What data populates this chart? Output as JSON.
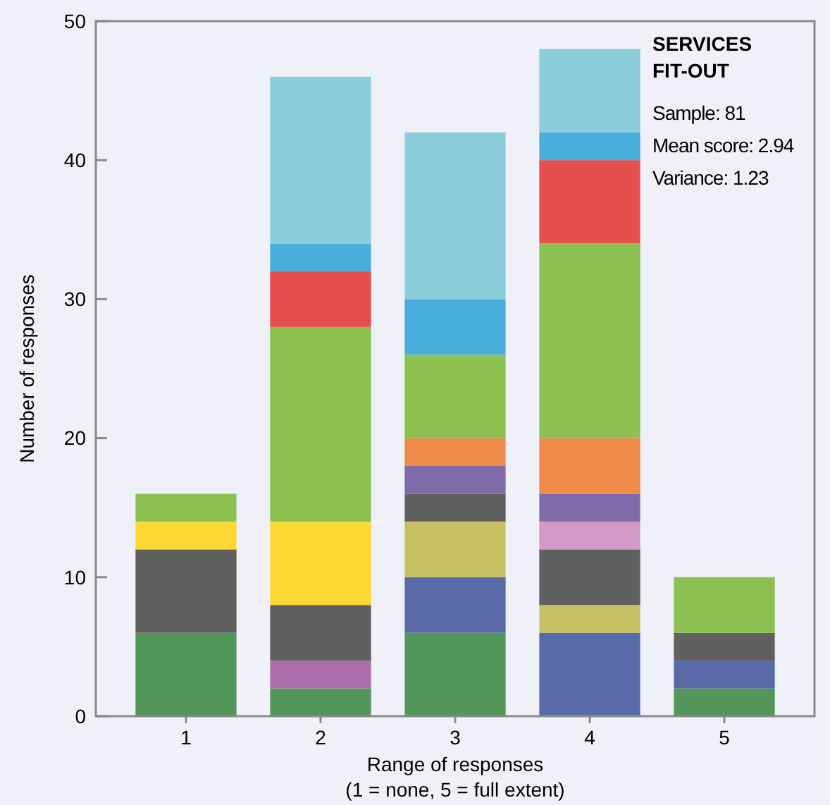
{
  "chart_data": {
    "type": "bar",
    "stacked": true,
    "title": "SERVICES FIT-OUT",
    "annotations": [
      "Sample: 81",
      "Mean score: 2.94",
      "Variance: 1.23"
    ],
    "xlabel": "Range of responses\n(1 = none, 5 = full extent)",
    "ylabel": "Number of responses",
    "categories": [
      "1",
      "2",
      "3",
      "4",
      "5"
    ],
    "ylim": [
      0,
      50
    ],
    "yticks": [
      0,
      10,
      20,
      30,
      40,
      50
    ],
    "grid": false,
    "series": [
      {
        "color": "#53965a",
        "values": [
          6,
          2,
          6,
          0,
          2
        ]
      },
      {
        "color": "#ad6fab",
        "values": [
          0,
          2,
          0,
          0,
          0
        ]
      },
      {
        "color": "#5a6aa9",
        "values": [
          0,
          0,
          4,
          6,
          2
        ]
      },
      {
        "color": "#c6c163",
        "values": [
          0,
          0,
          4,
          2,
          0
        ]
      },
      {
        "color": "#606060",
        "values": [
          6,
          4,
          2,
          4,
          2
        ]
      },
      {
        "color": "#d09ac4",
        "values": [
          0,
          0,
          0,
          2,
          0
        ]
      },
      {
        "color": "#7f6aaa",
        "values": [
          0,
          0,
          2,
          2,
          0
        ]
      },
      {
        "color": "#fcd835",
        "values": [
          2,
          6,
          0,
          0,
          0
        ]
      },
      {
        "color": "#ee8948",
        "values": [
          0,
          0,
          2,
          4,
          0
        ]
      },
      {
        "color": "#8cc152",
        "values": [
          2,
          14,
          6,
          14,
          4
        ]
      },
      {
        "color": "#e74f4f",
        "values": [
          0,
          4,
          0,
          6,
          0
        ]
      },
      {
        "color": "#4aaedd",
        "values": [
          0,
          2,
          4,
          2,
          0
        ]
      },
      {
        "color": "#89ceda",
        "values": [
          0,
          12,
          12,
          6,
          0
        ]
      }
    ]
  }
}
